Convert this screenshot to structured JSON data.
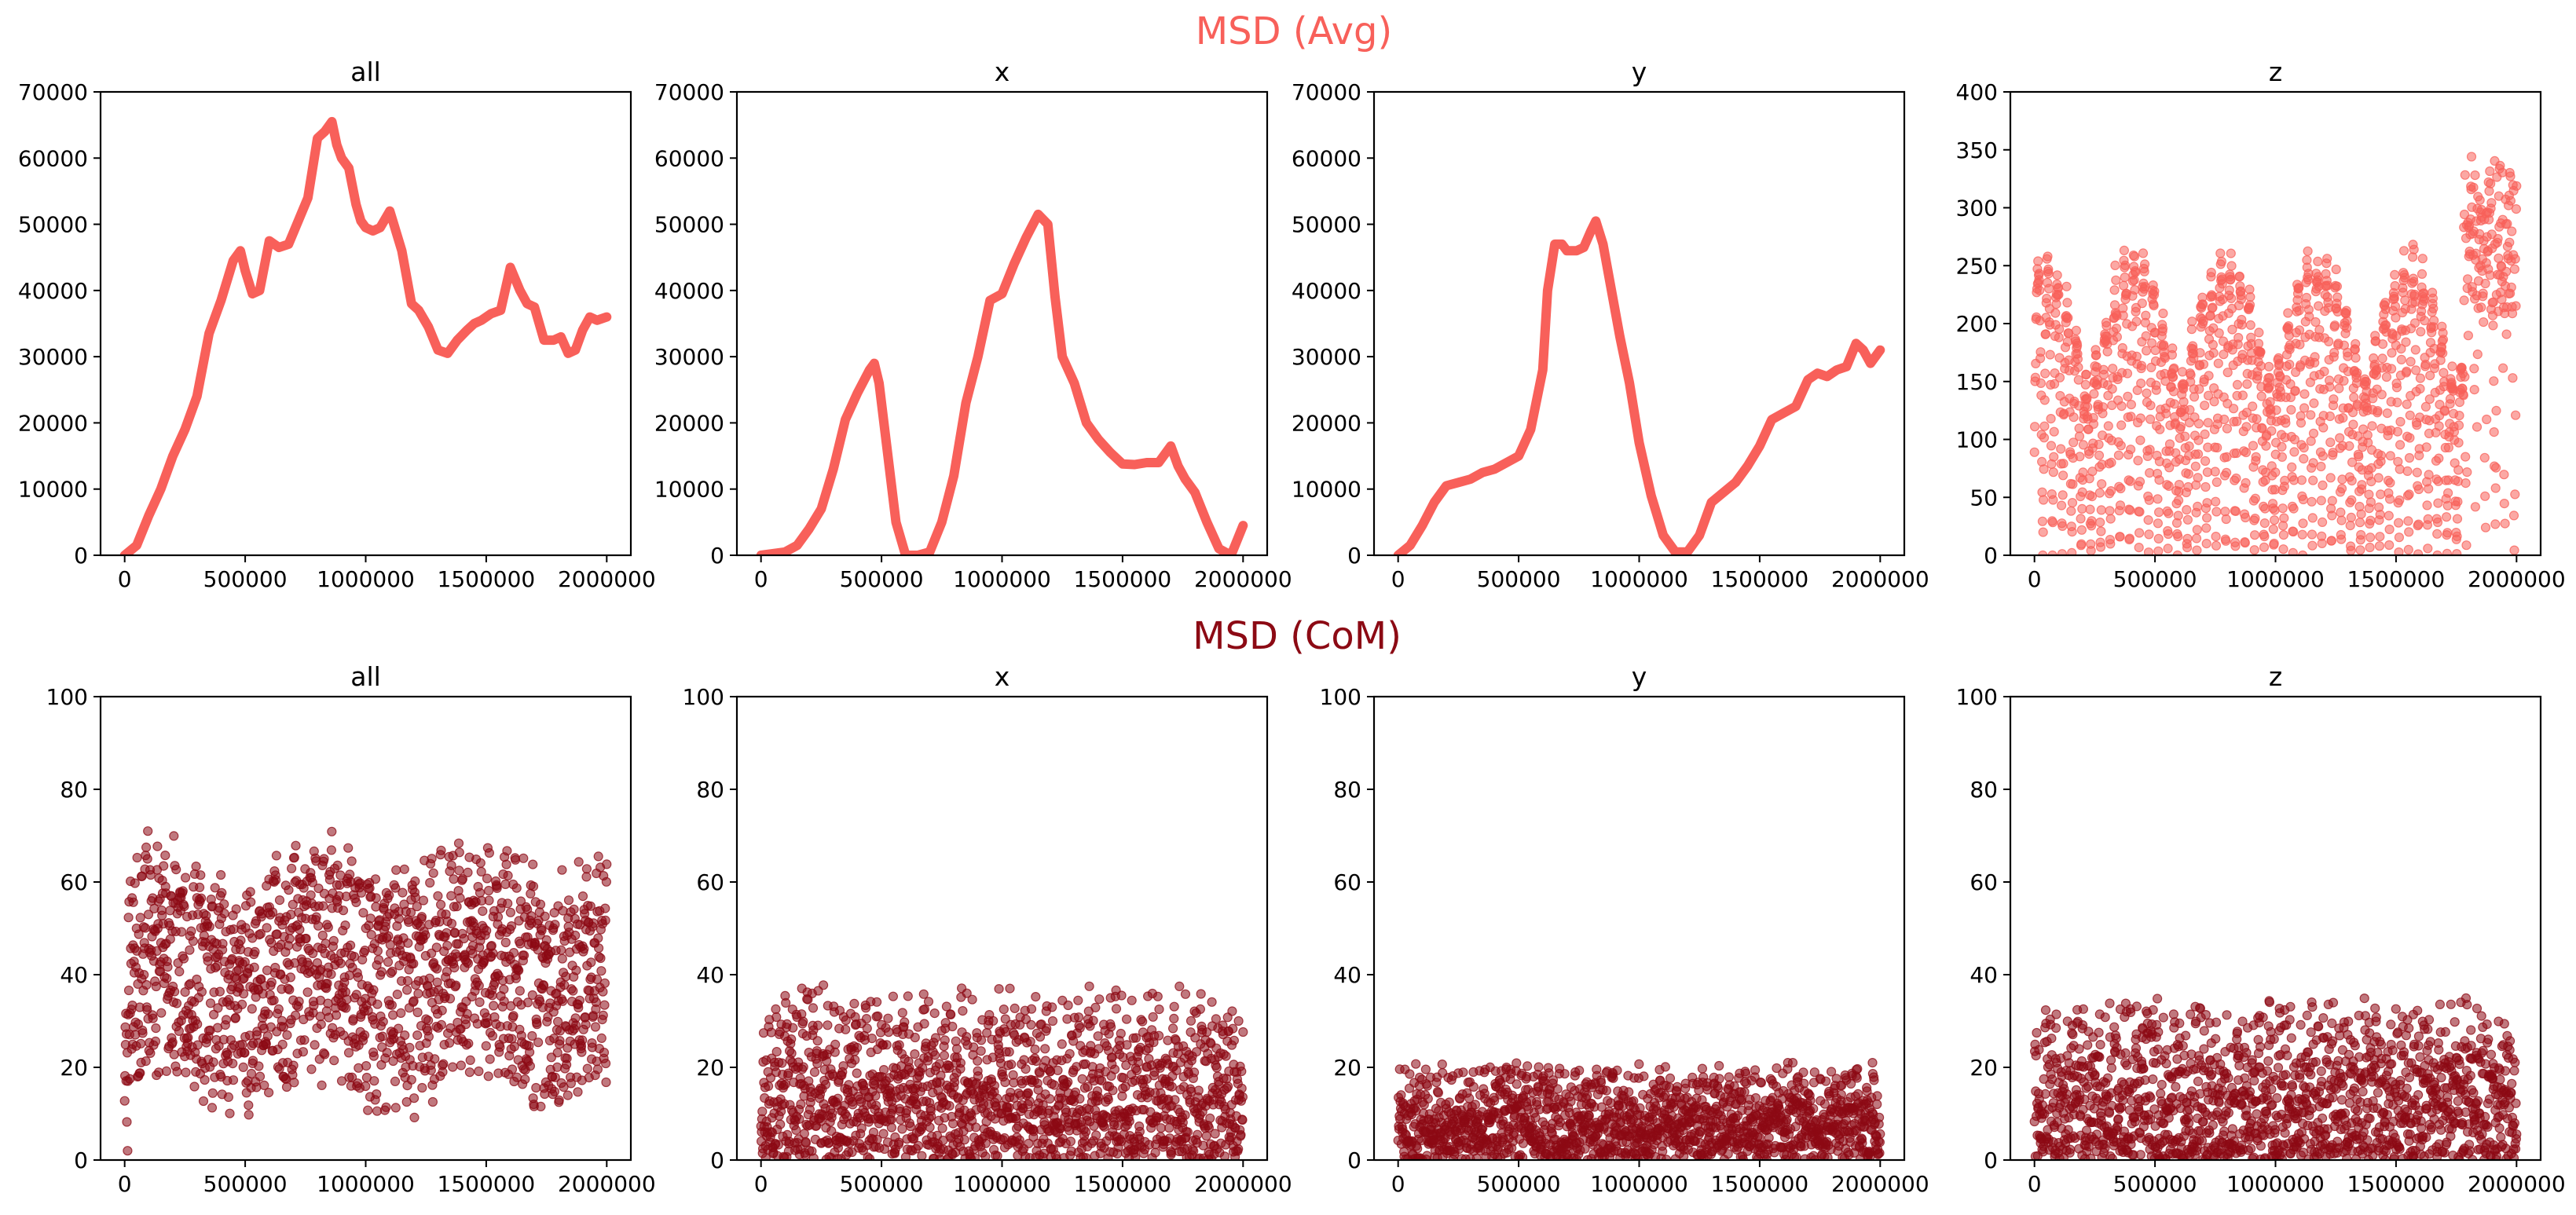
{
  "figure": {
    "row_titles": [
      {
        "text": "MSD (Avg)",
        "color": "#f8605a"
      },
      {
        "text": "MSD (CoM)",
        "color": "#8c0a14"
      }
    ]
  },
  "colors": {
    "avg": "#f8605a",
    "com": "#8c0a14",
    "axis": "#000000"
  },
  "chart_data": [
    {
      "type": "line",
      "title": "all",
      "row": 0,
      "col": 0,
      "color": "#f8605a",
      "xlim": [
        -100000,
        2100000
      ],
      "ylim": [
        0,
        70000
      ],
      "xticks": [
        0,
        500000,
        1000000,
        1500000,
        2000000
      ],
      "yticks": [
        0,
        10000,
        20000,
        30000,
        40000,
        50000,
        60000,
        70000
      ],
      "x": [
        0,
        50000,
        100000,
        150000,
        200000,
        250000,
        300000,
        350000,
        400000,
        450000,
        480000,
        500000,
        530000,
        560000,
        600000,
        640000,
        680000,
        720000,
        760000,
        800000,
        830000,
        860000,
        880000,
        900000,
        930000,
        960000,
        980000,
        1000000,
        1030000,
        1060000,
        1100000,
        1150000,
        1190000,
        1220000,
        1260000,
        1300000,
        1340000,
        1380000,
        1420000,
        1450000,
        1480000,
        1520000,
        1560000,
        1600000,
        1640000,
        1670000,
        1700000,
        1740000,
        1780000,
        1810000,
        1840000,
        1870000,
        1900000,
        1930000,
        1960000,
        2000000
      ],
      "y": [
        0,
        1500,
        6000,
        10000,
        15000,
        19000,
        24000,
        33500,
        38500,
        44500,
        46000,
        43000,
        39500,
        40000,
        47500,
        46500,
        47000,
        50500,
        54000,
        63000,
        64000,
        65500,
        62000,
        60000,
        58500,
        53000,
        50500,
        49500,
        49000,
        49500,
        52000,
        46000,
        38000,
        37000,
        34500,
        31000,
        30500,
        32500,
        34000,
        35000,
        35500,
        36500,
        37000,
        43500,
        40000,
        38000,
        37500,
        32500,
        32500,
        33000,
        30500,
        31000,
        34000,
        36000,
        35500,
        36000
      ]
    },
    {
      "type": "line",
      "title": "x",
      "row": 0,
      "col": 1,
      "color": "#f8605a",
      "xlim": [
        -100000,
        2100000
      ],
      "ylim": [
        0,
        70000
      ],
      "xticks": [
        0,
        500000,
        1000000,
        1500000,
        2000000
      ],
      "yticks": [
        0,
        10000,
        20000,
        30000,
        40000,
        50000,
        60000,
        70000
      ],
      "x": [
        0,
        100000,
        150000,
        200000,
        250000,
        300000,
        350000,
        400000,
        450000,
        470000,
        490000,
        520000,
        560000,
        600000,
        650000,
        700000,
        750000,
        800000,
        850000,
        900000,
        950000,
        1000000,
        1050000,
        1100000,
        1150000,
        1190000,
        1220000,
        1250000,
        1300000,
        1350000,
        1400000,
        1450000,
        1500000,
        1550000,
        1600000,
        1650000,
        1700000,
        1730000,
        1760000,
        1800000,
        1850000,
        1900000,
        1950000,
        2000000
      ],
      "y": [
        0,
        500,
        1500,
        4000,
        7000,
        13000,
        20500,
        24500,
        28000,
        29000,
        26000,
        17000,
        5000,
        0,
        0,
        500,
        5000,
        12000,
        23000,
        30000,
        38500,
        39500,
        44000,
        48000,
        51500,
        50000,
        39000,
        30000,
        26000,
        20000,
        17500,
        15500,
        13800,
        13700,
        14000,
        14000,
        16500,
        13500,
        11500,
        9500,
        5000,
        1000,
        0,
        4500
      ]
    },
    {
      "type": "line",
      "title": "y",
      "row": 0,
      "col": 2,
      "color": "#f8605a",
      "xlim": [
        -100000,
        2100000
      ],
      "ylim": [
        0,
        70000
      ],
      "xticks": [
        0,
        500000,
        1000000,
        1500000,
        2000000
      ],
      "yticks": [
        0,
        10000,
        20000,
        30000,
        40000,
        50000,
        60000,
        70000
      ],
      "x": [
        0,
        50000,
        100000,
        150000,
        200000,
        250000,
        300000,
        350000,
        400000,
        450000,
        500000,
        550000,
        600000,
        620000,
        650000,
        680000,
        700000,
        740000,
        770000,
        800000,
        820000,
        850000,
        880000,
        920000,
        960000,
        1000000,
        1050000,
        1100000,
        1150000,
        1200000,
        1250000,
        1300000,
        1350000,
        1400000,
        1450000,
        1500000,
        1550000,
        1600000,
        1650000,
        1700000,
        1740000,
        1780000,
        1820000,
        1860000,
        1900000,
        1930000,
        1960000,
        2000000
      ],
      "y": [
        0,
        1500,
        4500,
        8000,
        10500,
        11000,
        11500,
        12500,
        13000,
        14000,
        15000,
        19000,
        28000,
        40000,
        47000,
        47000,
        46000,
        46000,
        46500,
        49000,
        50500,
        47000,
        41000,
        33000,
        26000,
        17000,
        9000,
        3000,
        500,
        500,
        3000,
        8000,
        9500,
        11000,
        13500,
        16500,
        20500,
        21500,
        22500,
        26500,
        27500,
        27000,
        28000,
        28500,
        32000,
        31000,
        29000,
        31000
      ]
    },
    {
      "type": "scatter",
      "title": "z",
      "row": 0,
      "col": 3,
      "color": "#f8605a",
      "alpha": 0.55,
      "xlim": [
        -100000,
        2100000
      ],
      "ylim": [
        0,
        400
      ],
      "xticks": [
        0,
        500000,
        1000000,
        1500000,
        2000000
      ],
      "yticks": [
        0,
        50,
        100,
        150,
        200,
        250,
        300,
        350,
        400
      ],
      "generator": {
        "n": 1500,
        "seed": 11,
        "mode": "z_avg"
      }
    },
    {
      "type": "scatter",
      "title": "all",
      "row": 1,
      "col": 0,
      "color": "#8c0a14",
      "alpha": 0.55,
      "xlim": [
        -100000,
        2100000
      ],
      "ylim": [
        0,
        100
      ],
      "xticks": [
        0,
        500000,
        1000000,
        1500000,
        2000000
      ],
      "yticks": [
        0,
        20,
        40,
        60,
        80,
        100
      ],
      "generator": {
        "n": 1500,
        "seed": 23,
        "mode": "com_all"
      }
    },
    {
      "type": "scatter",
      "title": "x",
      "row": 1,
      "col": 1,
      "color": "#8c0a14",
      "alpha": 0.55,
      "xlim": [
        -100000,
        2100000
      ],
      "ylim": [
        0,
        100
      ],
      "xticks": [
        0,
        500000,
        1000000,
        1500000,
        2000000
      ],
      "yticks": [
        0,
        20,
        40,
        60,
        80,
        100
      ],
      "generator": {
        "n": 1500,
        "seed": 37,
        "mode": "uniform",
        "ymax": 38
      }
    },
    {
      "type": "scatter",
      "title": "y",
      "row": 1,
      "col": 2,
      "color": "#8c0a14",
      "alpha": 0.55,
      "xlim": [
        -100000,
        2100000
      ],
      "ylim": [
        0,
        100
      ],
      "xticks": [
        0,
        500000,
        1000000,
        1500000,
        2000000
      ],
      "yticks": [
        0,
        20,
        40,
        60,
        80,
        100
      ],
      "generator": {
        "n": 1500,
        "seed": 51,
        "mode": "uniform",
        "ymax": 21
      }
    },
    {
      "type": "scatter",
      "title": "z",
      "row": 1,
      "col": 3,
      "color": "#8c0a14",
      "alpha": 0.55,
      "xlim": [
        -100000,
        2100000
      ],
      "ylim": [
        0,
        100
      ],
      "xticks": [
        0,
        500000,
        1000000,
        1500000,
        2000000
      ],
      "yticks": [
        0,
        20,
        40,
        60,
        80,
        100
      ],
      "generator": {
        "n": 1500,
        "seed": 67,
        "mode": "uniform",
        "ymax": 35
      }
    }
  ]
}
